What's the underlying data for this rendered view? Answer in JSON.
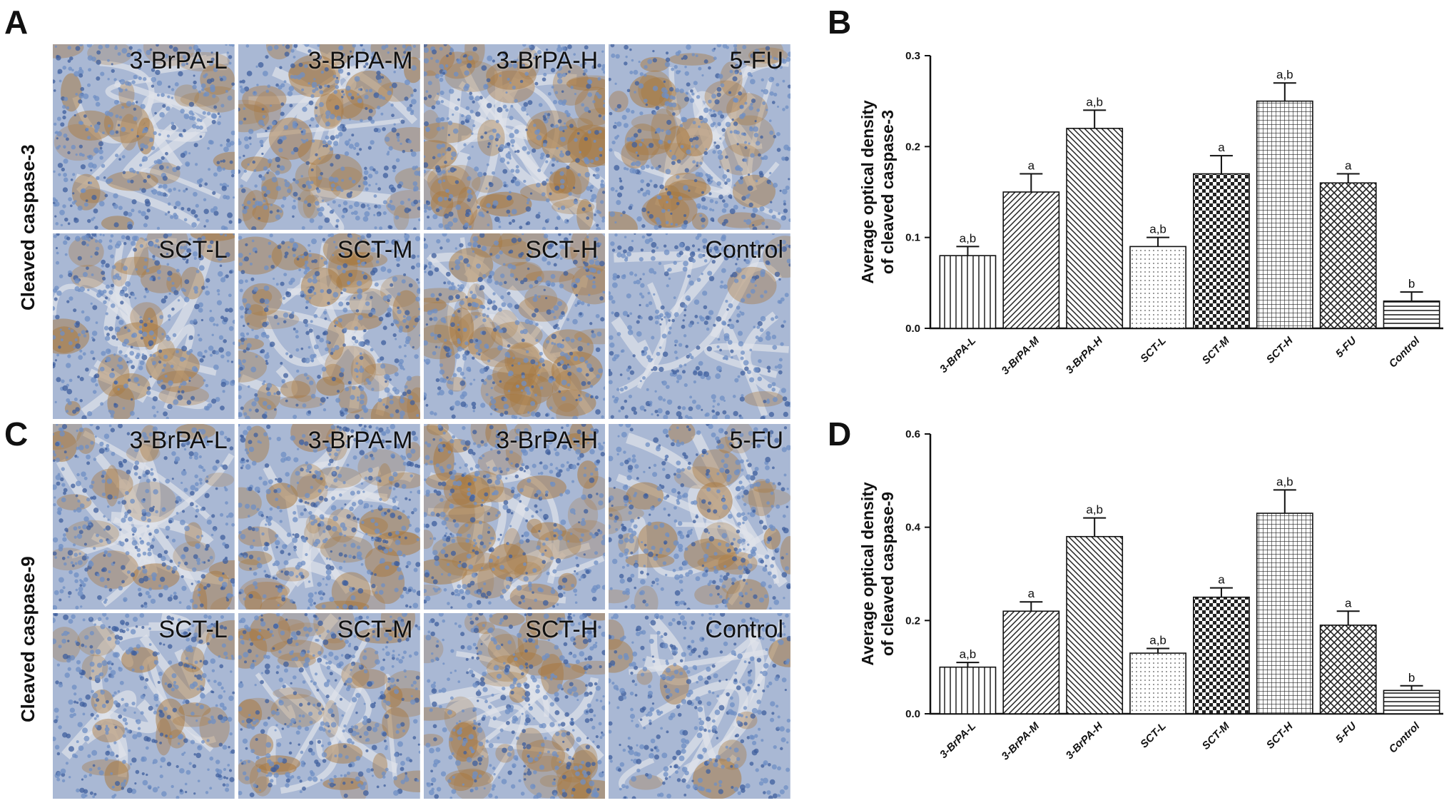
{
  "panels": {
    "A": {
      "letter": "A",
      "row_label": "Cleaved caspase-3",
      "tiles": [
        {
          "label": "3-BrPA-L",
          "stain": 0.35
        },
        {
          "label": "3-BrPA-M",
          "stain": 0.6
        },
        {
          "label": "3-BrPA-H",
          "stain": 0.75
        },
        {
          "label": "5-FU",
          "stain": 0.55
        },
        {
          "label": "SCT-L",
          "stain": 0.4
        },
        {
          "label": "SCT-M",
          "stain": 0.65
        },
        {
          "label": "SCT-H",
          "stain": 0.8
        },
        {
          "label": "Control",
          "stain": 0.05
        }
      ]
    },
    "C": {
      "letter": "C",
      "row_label": "Cleaved caspase-9",
      "tiles": [
        {
          "label": "3-BrPA-L",
          "stain": 0.35
        },
        {
          "label": "3-BrPA-M",
          "stain": 0.55
        },
        {
          "label": "3-BrPA-H",
          "stain": 0.75
        },
        {
          "label": "5-FU",
          "stain": 0.45
        },
        {
          "label": "SCT-L",
          "stain": 0.3
        },
        {
          "label": "SCT-M",
          "stain": 0.6
        },
        {
          "label": "SCT-H",
          "stain": 0.7
        },
        {
          "label": "Control",
          "stain": 0.15
        }
      ]
    },
    "B": {
      "letter": "B"
    },
    "D": {
      "letter": "D"
    }
  },
  "colors": {
    "tissue_blue": "#6f8fc4",
    "tissue_brown": "#a8783e",
    "tissue_light": "#dfe3ea",
    "axis": "#111111"
  },
  "chart_data": [
    {
      "type": "bar",
      "panel": "B",
      "categories": [
        "3-BrPA-L",
        "3-BrPA-M",
        "3-BrPA-H",
        "SCT-L",
        "SCT-M",
        "SCT-H",
        "5-FU",
        "Control"
      ],
      "values": [
        0.08,
        0.15,
        0.22,
        0.09,
        0.17,
        0.25,
        0.16,
        0.03
      ],
      "errors": [
        0.01,
        0.02,
        0.02,
        0.01,
        0.02,
        0.02,
        0.01,
        0.01
      ],
      "annotations": [
        "a,b",
        "a",
        "a,b",
        "a,b",
        "a",
        "a,b",
        "a",
        "b"
      ],
      "patterns": [
        "vlines",
        "diag-fwd",
        "diag-back",
        "dots",
        "checker",
        "grid",
        "cross",
        "hlines"
      ],
      "ylabel": "Average optical density\nof cleaved caspase-3",
      "ylim": [
        0,
        0.3
      ],
      "yticks": [
        "0.0",
        "0.1",
        "0.2",
        "0.3"
      ],
      "xlabel": "",
      "grid": false
    },
    {
      "type": "bar",
      "panel": "D",
      "categories": [
        "3-BrPA-L",
        "3-BrPA-M",
        "3-BrPA-H",
        "SCT-L",
        "SCT-M",
        "SCT-H",
        "5-FU",
        "Control"
      ],
      "values": [
        0.1,
        0.22,
        0.38,
        0.13,
        0.25,
        0.43,
        0.19,
        0.05
      ],
      "errors": [
        0.01,
        0.02,
        0.04,
        0.01,
        0.02,
        0.05,
        0.03,
        0.01
      ],
      "annotations": [
        "a,b",
        "a",
        "a,b",
        "a,b",
        "a",
        "a,b",
        "a",
        "b"
      ],
      "patterns": [
        "vlines",
        "diag-fwd",
        "diag-back",
        "dots",
        "checker",
        "grid",
        "cross",
        "hlines"
      ],
      "ylabel": "Average optical density\nof cleaved caspase-9",
      "ylim": [
        0,
        0.6
      ],
      "yticks": [
        "0.0",
        "0.2",
        "0.4",
        "0.6"
      ],
      "xlabel": "",
      "grid": false
    }
  ]
}
